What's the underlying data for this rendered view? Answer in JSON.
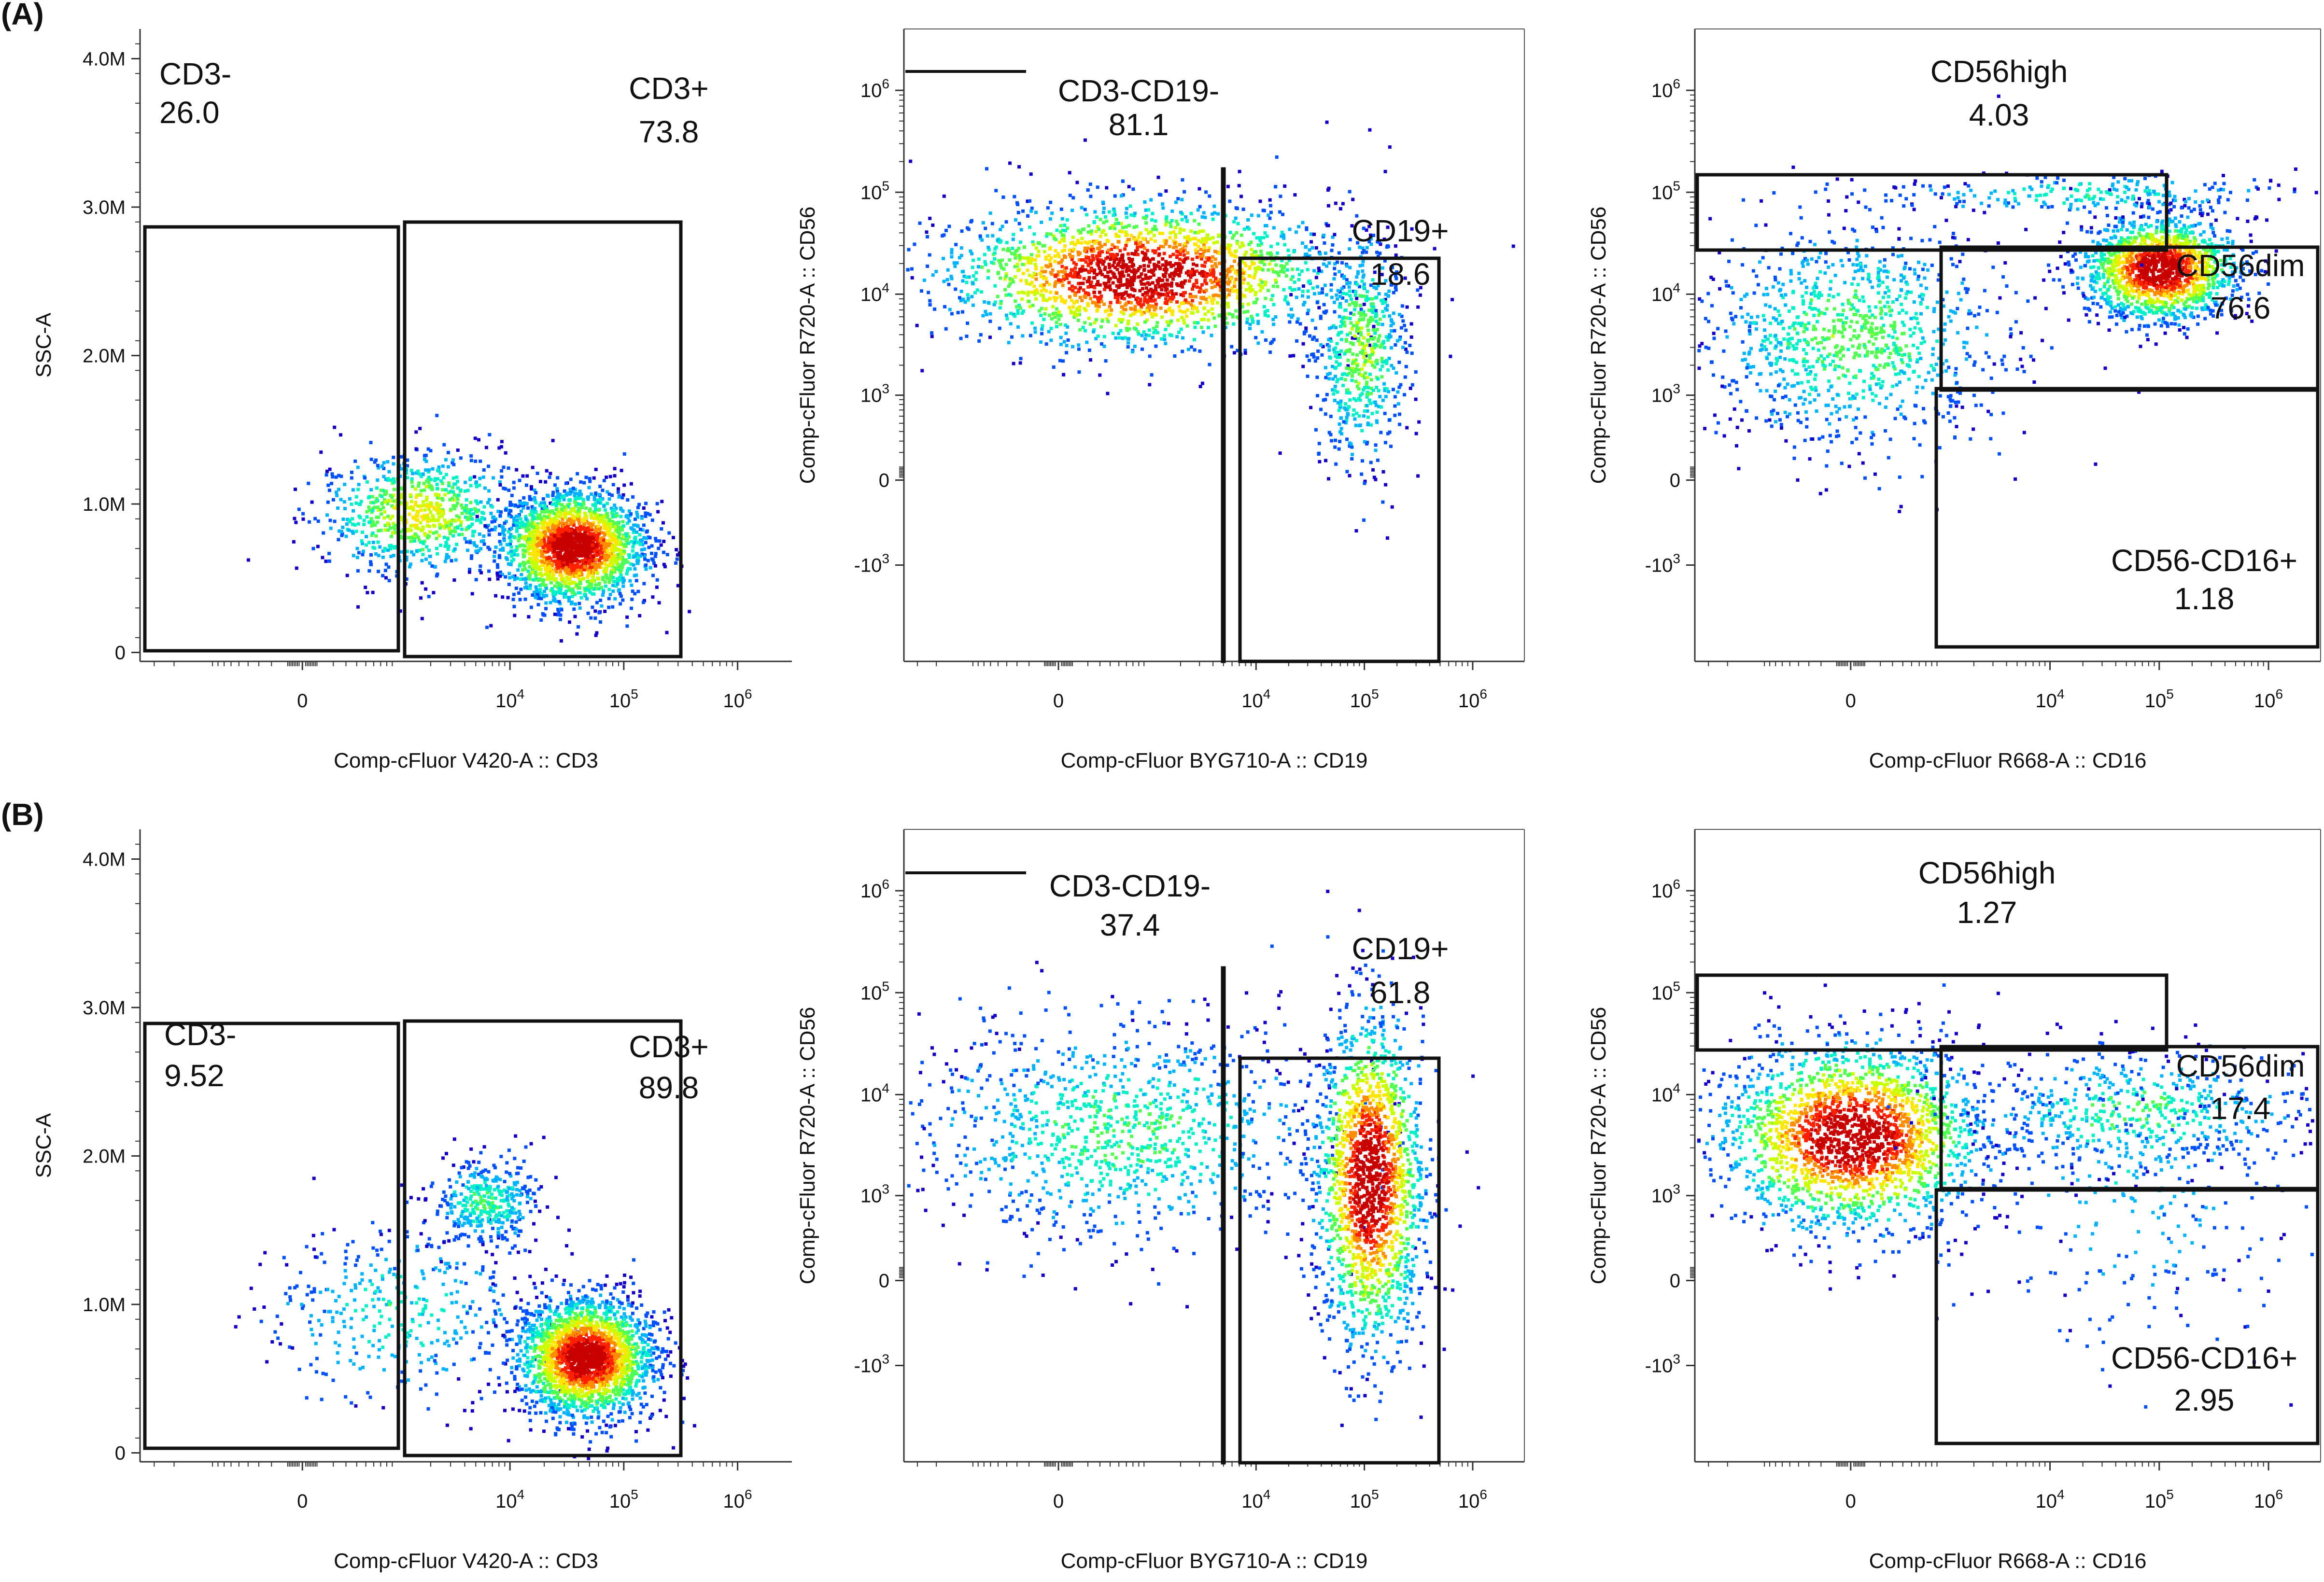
{
  "figure": {
    "panel_labels": [
      "(A)",
      "(B)"
    ]
  },
  "colormap": [
    "#1400c8",
    "#0050ff",
    "#00b4ff",
    "#00f0c8",
    "#50ff50",
    "#c8ff00",
    "#ffe600",
    "#ff8c00",
    "#ff2000",
    "#c80000"
  ],
  "chart_data": [
    {
      "type": "scatter",
      "subtype": "flow-cytometry-density",
      "panel": "A",
      "plot": 1,
      "xlabel": "Comp-cFluor V420-A :: CD3",
      "ylabel": "SSC-A",
      "xscale": "biexponential",
      "yscale": "linear",
      "xticks": [
        {
          "value": 0,
          "label": "0"
        },
        {
          "value": 10000,
          "label": "10",
          "exp": "4"
        },
        {
          "value": 100000,
          "label": "10",
          "exp": "5"
        },
        {
          "value": 1000000,
          "label": "10",
          "exp": "6"
        }
      ],
      "yticks": [
        {
          "value": 0,
          "label": "0"
        },
        {
          "value": 1000000,
          "label": "1.0M"
        },
        {
          "value": 2000000,
          "label": "2.0M"
        },
        {
          "value": 3000000,
          "label": "3.0M"
        },
        {
          "value": 4000000,
          "label": "4.0M"
        }
      ],
      "gates": [
        {
          "name": "CD3-",
          "percent": "26.0"
        },
        {
          "name": "CD3+",
          "percent": "73.8"
        }
      ],
      "populations": [
        {
          "x": 1500,
          "y": 950000,
          "sx": 0.45,
          "sy": 210000,
          "weight": 0.26,
          "peak": 0.55
        },
        {
          "x": 35000,
          "y": 720000,
          "sx": 0.32,
          "sy": 190000,
          "weight": 0.74,
          "peak": 1.0
        }
      ]
    },
    {
      "type": "scatter",
      "subtype": "flow-cytometry-density",
      "panel": "A",
      "plot": 2,
      "xlabel": "Comp-cFluor BYG710-A :: CD19",
      "ylabel": "Comp-cFluor R720-A :: CD56",
      "xscale": "biexponential",
      "yscale": "biexponential",
      "xticks": [
        {
          "value": 0,
          "label": "0"
        },
        {
          "value": 10000,
          "label": "10",
          "exp": "4"
        },
        {
          "value": 100000,
          "label": "10",
          "exp": "5"
        },
        {
          "value": 1000000,
          "label": "10",
          "exp": "6"
        }
      ],
      "yticks": [
        {
          "value": -1000,
          "label": "-10",
          "exp": "3"
        },
        {
          "value": 0,
          "label": "0"
        },
        {
          "value": 1000,
          "label": "10",
          "exp": "3"
        },
        {
          "value": 10000,
          "label": "10",
          "exp": "4"
        },
        {
          "value": 100000,
          "label": "10",
          "exp": "5"
        },
        {
          "value": 1000000,
          "label": "10",
          "exp": "6"
        }
      ],
      "gates": [
        {
          "name": "CD3-CD19-",
          "percent": "81.1"
        },
        {
          "name": "CD19+",
          "percent": "18.6"
        }
      ],
      "populations": [
        {
          "x": 800,
          "y": 16000,
          "sx": 0.9,
          "sy": 0.35,
          "weight": 0.81,
          "peak": 1.0
        },
        {
          "x": 90000,
          "y": 3000,
          "sx": 0.22,
          "sy": 0.6,
          "weight": 0.19,
          "peak": 0.45
        }
      ]
    },
    {
      "type": "scatter",
      "subtype": "flow-cytometry-density",
      "panel": "A",
      "plot": 3,
      "xlabel": "Comp-cFluor R668-A :: CD16",
      "ylabel": "Comp-cFluor R720-A :: CD56",
      "xscale": "biexponential",
      "yscale": "biexponential",
      "xticks": [
        {
          "value": 0,
          "label": "0"
        },
        {
          "value": 10000,
          "label": "10",
          "exp": "4"
        },
        {
          "value": 100000,
          "label": "10",
          "exp": "5"
        },
        {
          "value": 1000000,
          "label": "10",
          "exp": "6"
        }
      ],
      "yticks": [
        {
          "value": -1000,
          "label": "-10",
          "exp": "3"
        },
        {
          "value": 0,
          "label": "0"
        },
        {
          "value": 1000,
          "label": "10",
          "exp": "3"
        },
        {
          "value": 10000,
          "label": "10",
          "exp": "4"
        },
        {
          "value": 100000,
          "label": "10",
          "exp": "5"
        },
        {
          "value": 1000000,
          "label": "10",
          "exp": "6"
        }
      ],
      "gates": [
        {
          "name": "CD56high",
          "percent": "4.03"
        },
        {
          "name": "CD56dim",
          "percent": "76.6"
        },
        {
          "name": "CD56-CD16+",
          "percent": "1.18"
        }
      ],
      "populations": [
        {
          "x": 100000,
          "y": 18000,
          "sx": 0.35,
          "sy": 0.25,
          "weight": 0.55,
          "peak": 1.0
        },
        {
          "x": 0,
          "y": 4000,
          "sx": 0.7,
          "sy": 0.55,
          "weight": 0.38,
          "peak": 0.4
        },
        {
          "x": 20000,
          "y": 100000,
          "sx": 1.0,
          "sy": 0.1,
          "weight": 0.04,
          "peak": 0.3
        }
      ]
    },
    {
      "type": "scatter",
      "subtype": "flow-cytometry-density",
      "panel": "B",
      "plot": 1,
      "xlabel": "Comp-cFluor V420-A :: CD3",
      "ylabel": "SSC-A",
      "xscale": "biexponential",
      "yscale": "linear",
      "xticks": [
        {
          "value": 0,
          "label": "0"
        },
        {
          "value": 10000,
          "label": "10",
          "exp": "4"
        },
        {
          "value": 100000,
          "label": "10",
          "exp": "5"
        },
        {
          "value": 1000000,
          "label": "10",
          "exp": "6"
        }
      ],
      "yticks": [
        {
          "value": 0,
          "label": "0"
        },
        {
          "value": 1000000,
          "label": "1.0M"
        },
        {
          "value": 2000000,
          "label": "2.0M"
        },
        {
          "value": 3000000,
          "label": "3.0M"
        },
        {
          "value": 4000000,
          "label": "4.0M"
        }
      ],
      "gates": [
        {
          "name": "CD3-",
          "percent": "9.52"
        },
        {
          "name": "CD3+",
          "percent": "89.8"
        }
      ],
      "populations": [
        {
          "x": 1000,
          "y": 950000,
          "sx": 0.6,
          "sy": 300000,
          "weight": 0.1,
          "peak": 0.3
        },
        {
          "x": 45000,
          "y": 650000,
          "sx": 0.3,
          "sy": 200000,
          "weight": 0.8,
          "peak": 1.0
        },
        {
          "x": 6000,
          "y": 1700000,
          "sx": 0.25,
          "sy": 150000,
          "weight": 0.1,
          "peak": 0.35
        }
      ]
    },
    {
      "type": "scatter",
      "subtype": "flow-cytometry-density",
      "panel": "B",
      "plot": 2,
      "xlabel": "Comp-cFluor BYG710-A :: CD19",
      "ylabel": "Comp-cFluor R720-A :: CD56",
      "xscale": "biexponential",
      "yscale": "biexponential",
      "xticks": [
        {
          "value": 0,
          "label": "0"
        },
        {
          "value": 10000,
          "label": "10",
          "exp": "4"
        },
        {
          "value": 100000,
          "label": "10",
          "exp": "5"
        },
        {
          "value": 1000000,
          "label": "10",
          "exp": "6"
        }
      ],
      "yticks": [
        {
          "value": -1000,
          "label": "-10",
          "exp": "3"
        },
        {
          "value": 0,
          "label": "0"
        },
        {
          "value": 1000,
          "label": "10",
          "exp": "3"
        },
        {
          "value": 10000,
          "label": "10",
          "exp": "4"
        },
        {
          "value": 100000,
          "label": "10",
          "exp": "5"
        },
        {
          "value": 1000000,
          "label": "10",
          "exp": "6"
        }
      ],
      "gates": [
        {
          "name": "CD3-CD19-",
          "percent": "37.4"
        },
        {
          "name": "CD19+",
          "percent": "61.8"
        }
      ],
      "populations": [
        {
          "x": 500,
          "y": 4500,
          "sx": 1.0,
          "sy": 0.55,
          "weight": 0.38,
          "peak": 0.35
        },
        {
          "x": 110000,
          "y": 1500,
          "sx": 0.25,
          "sy": 0.8,
          "weight": 0.62,
          "peak": 1.0
        }
      ]
    },
    {
      "type": "scatter",
      "subtype": "flow-cytometry-density",
      "panel": "B",
      "plot": 3,
      "xlabel": "Comp-cFluor R668-A :: CD16",
      "ylabel": "Comp-cFluor R720-A :: CD56",
      "xscale": "biexponential",
      "yscale": "biexponential",
      "xticks": [
        {
          "value": 0,
          "label": "0"
        },
        {
          "value": 10000,
          "label": "10",
          "exp": "4"
        },
        {
          "value": 100000,
          "label": "10",
          "exp": "5"
        },
        {
          "value": 1000000,
          "label": "10",
          "exp": "6"
        }
      ],
      "yticks": [
        {
          "value": -1000,
          "label": "-10",
          "exp": "3"
        },
        {
          "value": 0,
          "label": "0"
        },
        {
          "value": 1000,
          "label": "10",
          "exp": "3"
        },
        {
          "value": 10000,
          "label": "10",
          "exp": "4"
        },
        {
          "value": 100000,
          "label": "10",
          "exp": "5"
        },
        {
          "value": 1000000,
          "label": "10",
          "exp": "6"
        }
      ],
      "gates": [
        {
          "name": "CD56high",
          "percent": "1.27"
        },
        {
          "name": "CD56dim",
          "percent": "17.4"
        },
        {
          "name": "CD56-CD16+",
          "percent": "2.95"
        }
      ],
      "populations": [
        {
          "x": 0,
          "y": 4000,
          "sx": 0.6,
          "sy": 0.45,
          "weight": 0.78,
          "peak": 1.0
        },
        {
          "x": 60000,
          "y": 7000,
          "sx": 0.8,
          "sy": 0.3,
          "weight": 0.17,
          "peak": 0.35
        },
        {
          "x": 50000,
          "y": 1000,
          "sx": 0.8,
          "sy": 0.7,
          "weight": 0.05,
          "peak": 0.2
        }
      ]
    }
  ]
}
